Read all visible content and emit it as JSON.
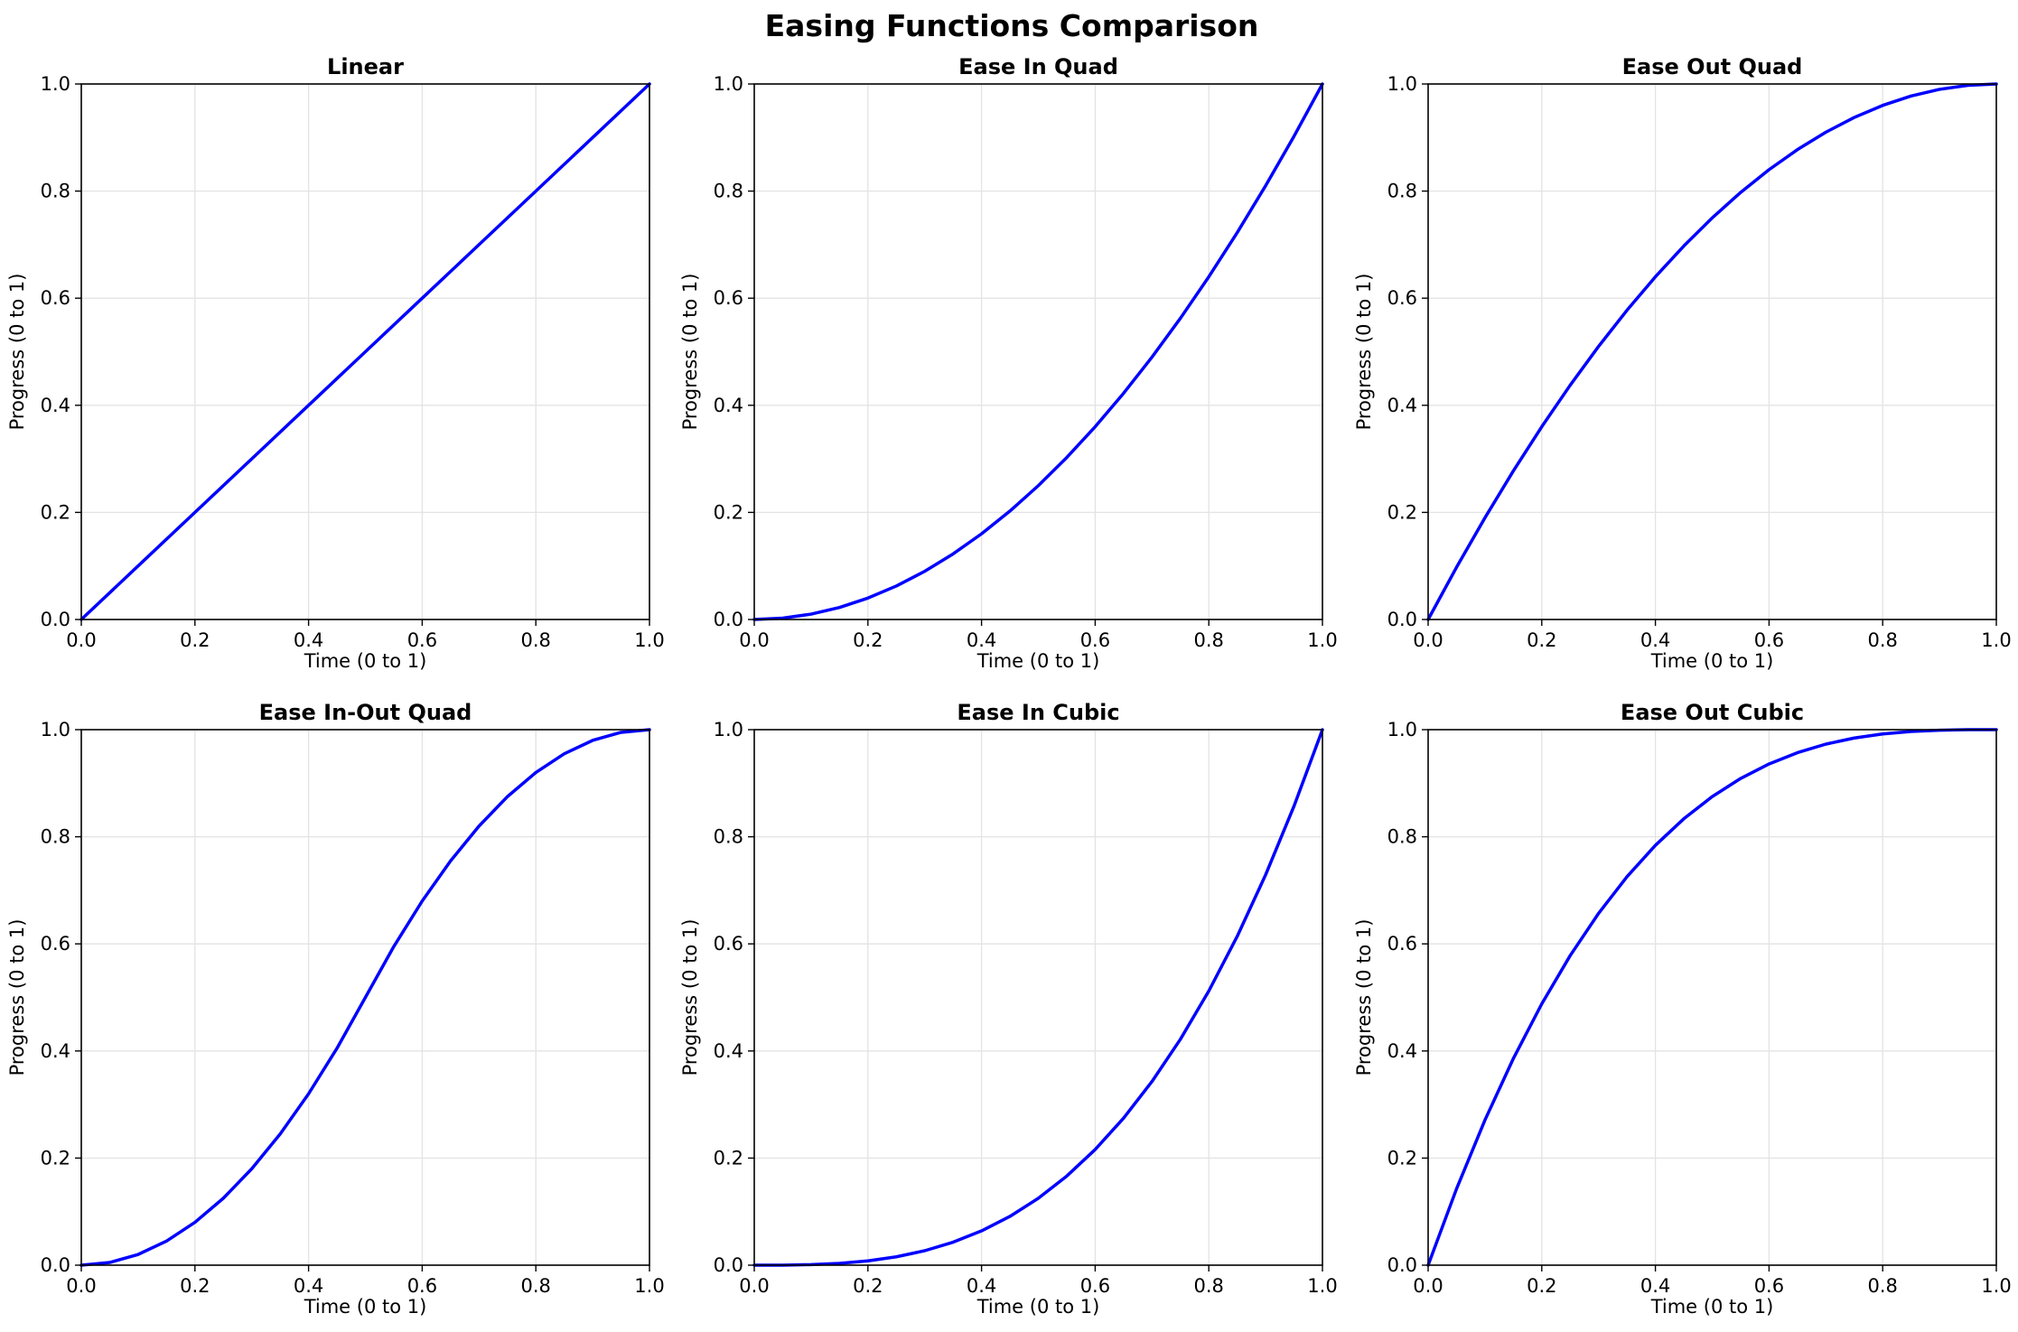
{
  "figure": {
    "title": "Easing Functions Comparison"
  },
  "chart_data": [
    {
      "type": "line",
      "title": "Linear",
      "xlabel": "Time (0 to 1)",
      "ylabel": "Progress (0 to 1)",
      "xlim": [
        0,
        1
      ],
      "ylim": [
        0,
        1
      ],
      "xticks": [
        "0.0",
        "0.2",
        "0.4",
        "0.6",
        "0.8",
        "1.0"
      ],
      "yticks": [
        "0.0",
        "0.2",
        "0.4",
        "0.6",
        "0.8",
        "1.0"
      ],
      "grid": true,
      "color": "#0000ff",
      "x": [
        0,
        0.1,
        0.2,
        0.3,
        0.4,
        0.5,
        0.6,
        0.7,
        0.8,
        0.9,
        1.0
      ],
      "y": [
        0,
        0.1,
        0.2,
        0.3,
        0.4,
        0.5,
        0.6,
        0.7,
        0.8,
        0.9,
        1.0
      ]
    },
    {
      "type": "line",
      "title": "Ease In Quad",
      "xlabel": "Time (0 to 1)",
      "ylabel": "Progress (0 to 1)",
      "xlim": [
        0,
        1
      ],
      "ylim": [
        0,
        1
      ],
      "xticks": [
        "0.0",
        "0.2",
        "0.4",
        "0.6",
        "0.8",
        "1.0"
      ],
      "yticks": [
        "0.0",
        "0.2",
        "0.4",
        "0.6",
        "0.8",
        "1.0"
      ],
      "grid": true,
      "color": "#0000ff",
      "x": [
        0,
        0.05,
        0.1,
        0.15,
        0.2,
        0.25,
        0.3,
        0.35,
        0.4,
        0.45,
        0.5,
        0.55,
        0.6,
        0.65,
        0.7,
        0.75,
        0.8,
        0.85,
        0.9,
        0.95,
        1.0
      ],
      "y": [
        0,
        0.0025,
        0.01,
        0.0225,
        0.04,
        0.0625,
        0.09,
        0.1225,
        0.16,
        0.2025,
        0.25,
        0.3025,
        0.36,
        0.4225,
        0.49,
        0.5625,
        0.64,
        0.7225,
        0.81,
        0.9025,
        1.0
      ]
    },
    {
      "type": "line",
      "title": "Ease Out Quad",
      "xlabel": "Time (0 to 1)",
      "ylabel": "Progress (0 to 1)",
      "xlim": [
        0,
        1
      ],
      "ylim": [
        0,
        1
      ],
      "xticks": [
        "0.0",
        "0.2",
        "0.4",
        "0.6",
        "0.8",
        "1.0"
      ],
      "yticks": [
        "0.0",
        "0.2",
        "0.4",
        "0.6",
        "0.8",
        "1.0"
      ],
      "grid": true,
      "color": "#0000ff",
      "x": [
        0,
        0.05,
        0.1,
        0.15,
        0.2,
        0.25,
        0.3,
        0.35,
        0.4,
        0.45,
        0.5,
        0.55,
        0.6,
        0.65,
        0.7,
        0.75,
        0.8,
        0.85,
        0.9,
        0.95,
        1.0
      ],
      "y": [
        0,
        0.0975,
        0.19,
        0.2775,
        0.36,
        0.4375,
        0.51,
        0.5775,
        0.64,
        0.6975,
        0.75,
        0.7975,
        0.84,
        0.8775,
        0.91,
        0.9375,
        0.96,
        0.9775,
        0.99,
        0.9975,
        1.0
      ]
    },
    {
      "type": "line",
      "title": "Ease In-Out Quad",
      "xlabel": "Time (0 to 1)",
      "ylabel": "Progress (0 to 1)",
      "xlim": [
        0,
        1
      ],
      "ylim": [
        0,
        1
      ],
      "xticks": [
        "0.0",
        "0.2",
        "0.4",
        "0.6",
        "0.8",
        "1.0"
      ],
      "yticks": [
        "0.0",
        "0.2",
        "0.4",
        "0.6",
        "0.8",
        "1.0"
      ],
      "grid": true,
      "color": "#0000ff",
      "x": [
        0,
        0.05,
        0.1,
        0.15,
        0.2,
        0.25,
        0.3,
        0.35,
        0.4,
        0.45,
        0.5,
        0.55,
        0.6,
        0.65,
        0.7,
        0.75,
        0.8,
        0.85,
        0.9,
        0.95,
        1.0
      ],
      "y": [
        0,
        0.005,
        0.02,
        0.045,
        0.08,
        0.125,
        0.18,
        0.245,
        0.32,
        0.405,
        0.5,
        0.595,
        0.68,
        0.755,
        0.82,
        0.875,
        0.92,
        0.955,
        0.98,
        0.995,
        1.0
      ]
    },
    {
      "type": "line",
      "title": "Ease In Cubic",
      "xlabel": "Time (0 to 1)",
      "ylabel": "Progress (0 to 1)",
      "xlim": [
        0,
        1
      ],
      "ylim": [
        0,
        1
      ],
      "xticks": [
        "0.0",
        "0.2",
        "0.4",
        "0.6",
        "0.8",
        "1.0"
      ],
      "yticks": [
        "0.0",
        "0.2",
        "0.4",
        "0.6",
        "0.8",
        "1.0"
      ],
      "grid": true,
      "color": "#0000ff",
      "x": [
        0,
        0.05,
        0.1,
        0.15,
        0.2,
        0.25,
        0.3,
        0.35,
        0.4,
        0.45,
        0.5,
        0.55,
        0.6,
        0.65,
        0.7,
        0.75,
        0.8,
        0.85,
        0.9,
        0.95,
        1.0
      ],
      "y": [
        0,
        0.0001,
        0.001,
        0.0034,
        0.008,
        0.0156,
        0.027,
        0.0429,
        0.064,
        0.0911,
        0.125,
        0.1664,
        0.216,
        0.2746,
        0.343,
        0.4219,
        0.512,
        0.6141,
        0.729,
        0.8574,
        1.0
      ]
    },
    {
      "type": "line",
      "title": "Ease Out Cubic",
      "xlabel": "Time (0 to 1)",
      "ylabel": "Progress (0 to 1)",
      "xlim": [
        0,
        1
      ],
      "ylim": [
        0,
        1
      ],
      "xticks": [
        "0.0",
        "0.2",
        "0.4",
        "0.6",
        "0.8",
        "1.0"
      ],
      "yticks": [
        "0.0",
        "0.2",
        "0.4",
        "0.6",
        "0.8",
        "1.0"
      ],
      "grid": true,
      "color": "#0000ff",
      "x": [
        0,
        0.05,
        0.1,
        0.15,
        0.2,
        0.25,
        0.3,
        0.35,
        0.4,
        0.45,
        0.5,
        0.55,
        0.6,
        0.65,
        0.7,
        0.75,
        0.8,
        0.85,
        0.9,
        0.95,
        1.0
      ],
      "y": [
        0,
        0.1426,
        0.271,
        0.3859,
        0.488,
        0.5781,
        0.657,
        0.7254,
        0.784,
        0.8336,
        0.875,
        0.9089,
        0.936,
        0.9571,
        0.973,
        0.9844,
        0.992,
        0.9966,
        0.999,
        0.9999,
        1.0
      ]
    }
  ]
}
